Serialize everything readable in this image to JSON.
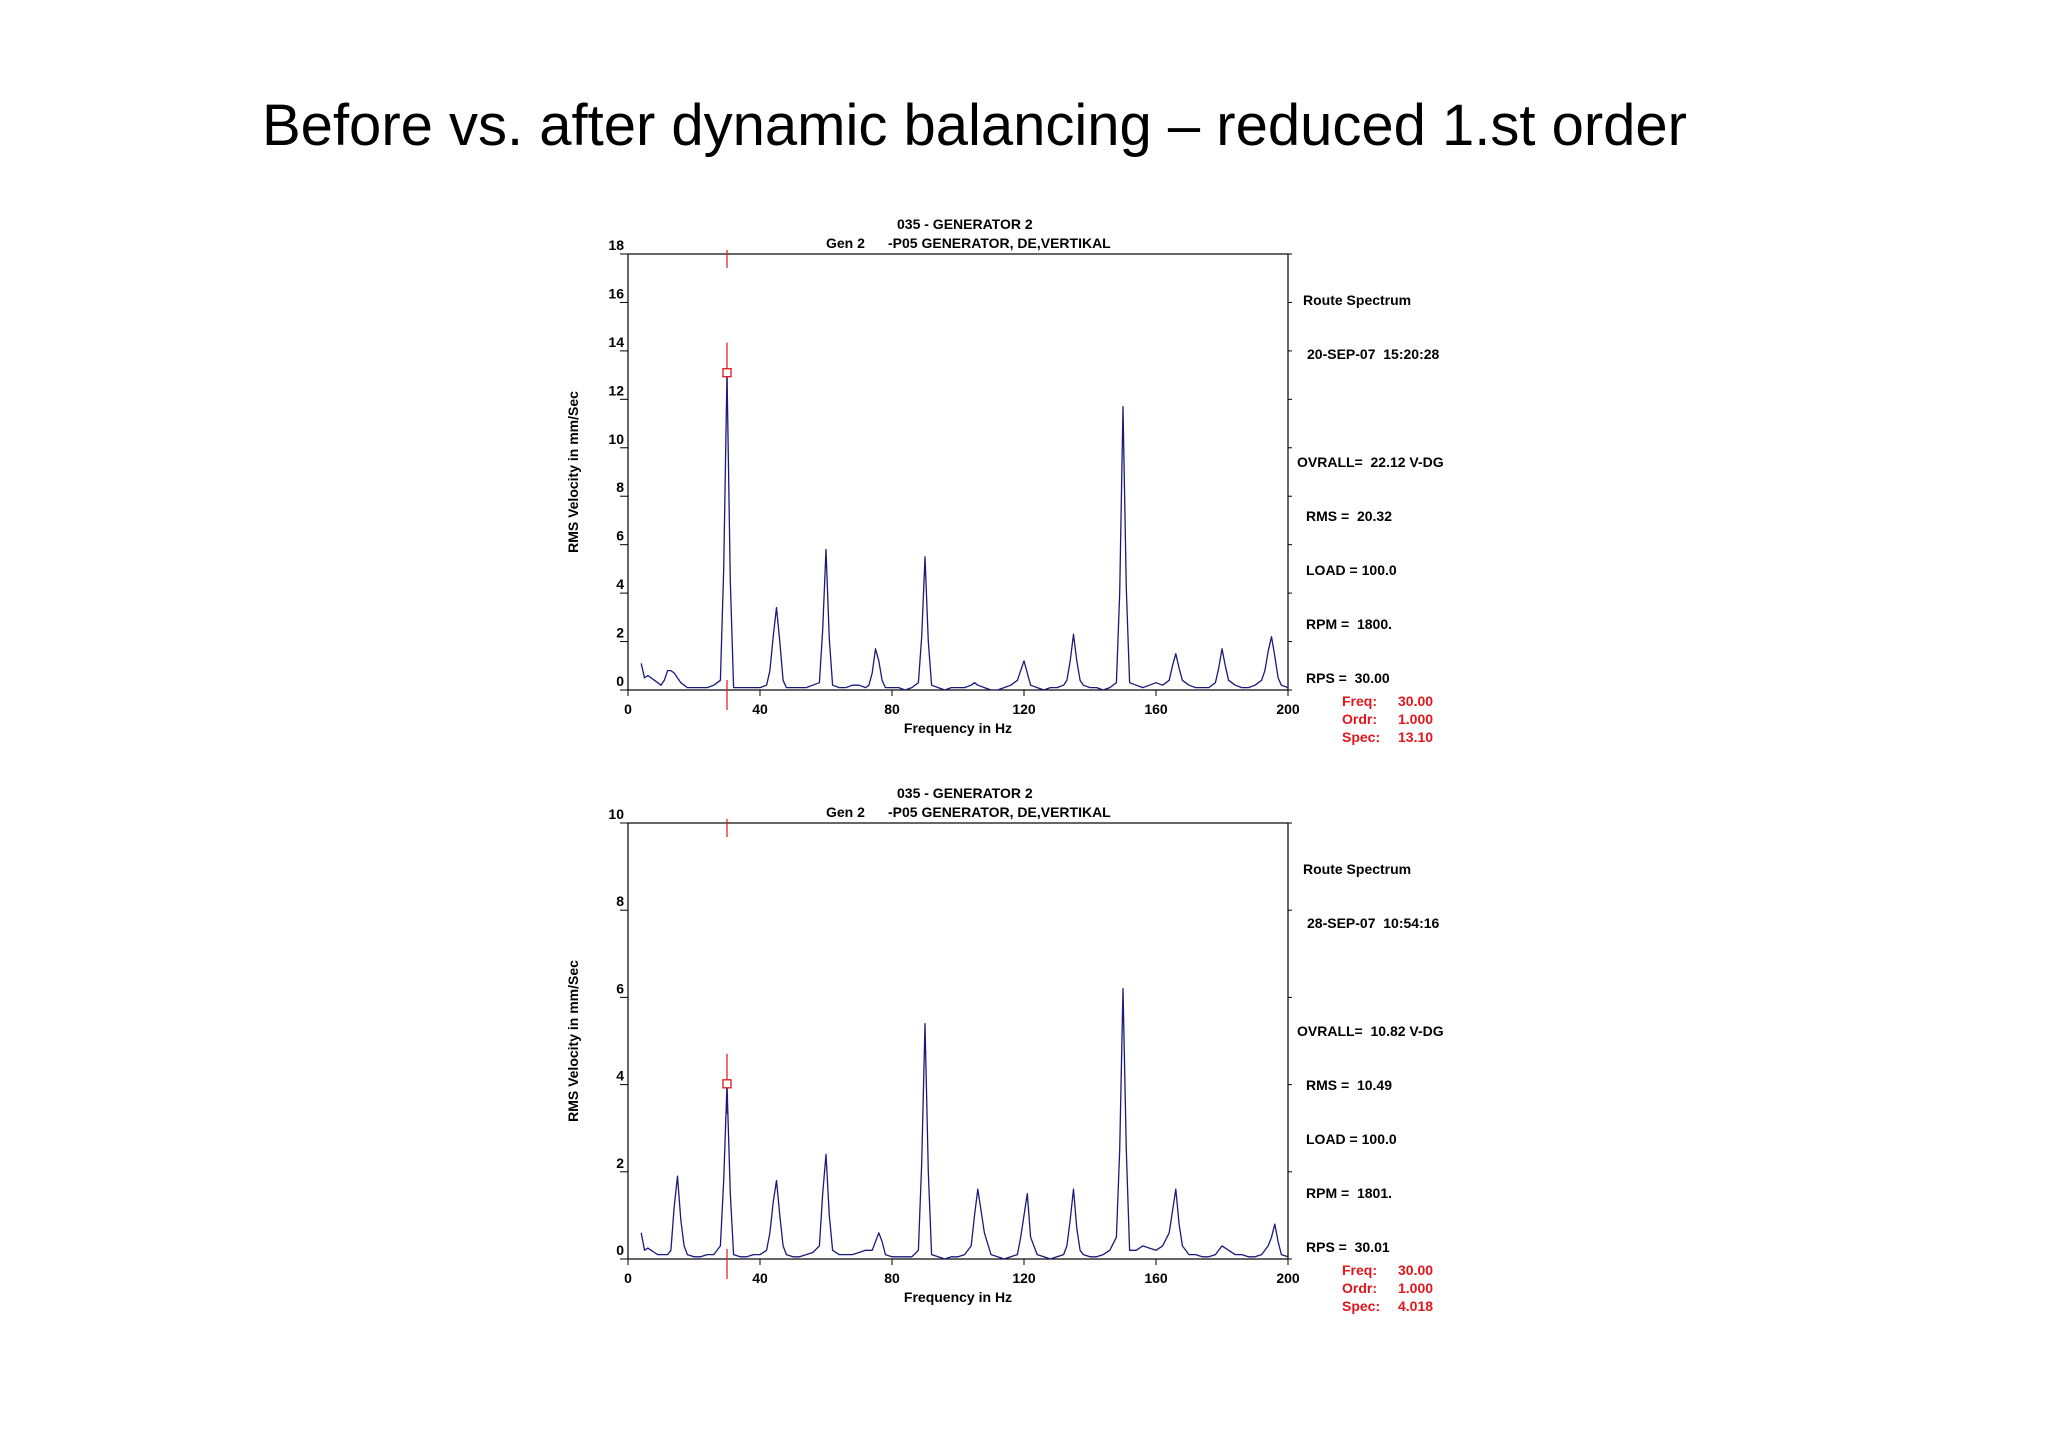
{
  "slide": {
    "title": "Before vs. after dynamic balancing – reduced 1.st order"
  },
  "colors": {
    "trace": "#1a1a7a",
    "cursor": "#e0161b",
    "axis": "#000000"
  },
  "chart_data": [
    {
      "type": "line",
      "header_line1": "035  - GENERATOR 2",
      "header_line2_left": "Gen 2",
      "header_line2_right": "-P05   GENERATOR, DE,VERTIKAL",
      "xlabel": "Frequency in Hz",
      "ylabel": "RMS Velocity in mm/Sec",
      "xlim": [
        0,
        200
      ],
      "ylim": [
        0,
        18
      ],
      "xticks": [
        "0",
        "40",
        "80",
        "120",
        "160",
        "200"
      ],
      "yticks": [
        "0",
        "2",
        "4",
        "6",
        "8",
        "10",
        "12",
        "14",
        "16",
        "18"
      ],
      "info": {
        "title": "Route Spectrum",
        "date": "20-SEP-07  15:20:28",
        "overall": "OVRALL=  22.12 V-DG",
        "rms": "RMS =  20.32",
        "load": "LOAD = 100.0",
        "rpm": "RPM =  1800.",
        "rps": "RPS =  30.00"
      },
      "cursor": {
        "freq_label": "Freq:",
        "freq": "30.00",
        "ordr_label": "Ordr:",
        "ordr": "1.000",
        "spec_label": "Spec:",
        "spec": "13.10",
        "x": 30,
        "y": 13.1
      },
      "series": [
        {
          "x": [
            4,
            5,
            6,
            7,
            8,
            9,
            10,
            11,
            12,
            13,
            14,
            15,
            16,
            17,
            18,
            20,
            22,
            24,
            26,
            28,
            29,
            30,
            31,
            32,
            34,
            36,
            38,
            40,
            42,
            43,
            44,
            45,
            46,
            47,
            48,
            50,
            52,
            54,
            56,
            58,
            59,
            60,
            61,
            62,
            64,
            66,
            68,
            70,
            72,
            73,
            74,
            75,
            76,
            77,
            78,
            80,
            82,
            84,
            86,
            88,
            89,
            90,
            91,
            92,
            94,
            96,
            98,
            100,
            102,
            104,
            105,
            106,
            108,
            110,
            112,
            114,
            116,
            118,
            119,
            120,
            121,
            122,
            124,
            126,
            128,
            130,
            132,
            133,
            134,
            135,
            136,
            137,
            138,
            140,
            142,
            144,
            146,
            148,
            149,
            150,
            151,
            152,
            154,
            156,
            158,
            160,
            162,
            164,
            165,
            166,
            167,
            168,
            170,
            172,
            174,
            176,
            178,
            179,
            180,
            181,
            182,
            184,
            186,
            188,
            190,
            192,
            193,
            194,
            195,
            196,
            197,
            198,
            200
          ],
          "values": [
            1.1,
            0.5,
            0.6,
            0.5,
            0.4,
            0.3,
            0.2,
            0.4,
            0.8,
            0.8,
            0.7,
            0.5,
            0.3,
            0.2,
            0.1,
            0.1,
            0.1,
            0.1,
            0.2,
            0.4,
            5.0,
            13.1,
            4.5,
            0.1,
            0.1,
            0.1,
            0.1,
            0.1,
            0.2,
            0.8,
            2.2,
            3.4,
            2.0,
            0.4,
            0.1,
            0.1,
            0.1,
            0.1,
            0.2,
            0.3,
            2.5,
            5.8,
            2.1,
            0.2,
            0.1,
            0.1,
            0.2,
            0.2,
            0.1,
            0.2,
            0.7,
            1.7,
            1.2,
            0.4,
            0.1,
            0.1,
            0.1,
            0.0,
            0.1,
            0.3,
            2.2,
            5.5,
            2.0,
            0.2,
            0.1,
            0.0,
            0.1,
            0.1,
            0.1,
            0.2,
            0.3,
            0.2,
            0.1,
            0.0,
            0.0,
            0.1,
            0.2,
            0.4,
            0.8,
            1.2,
            0.7,
            0.2,
            0.1,
            0.0,
            0.1,
            0.1,
            0.2,
            0.4,
            1.2,
            2.3,
            1.2,
            0.4,
            0.2,
            0.1,
            0.1,
            0.0,
            0.1,
            0.3,
            4.0,
            11.7,
            4.2,
            0.3,
            0.2,
            0.1,
            0.2,
            0.3,
            0.2,
            0.4,
            1.0,
            1.5,
            0.9,
            0.4,
            0.2,
            0.1,
            0.1,
            0.1,
            0.3,
            0.9,
            1.7,
            1.0,
            0.4,
            0.2,
            0.1,
            0.1,
            0.2,
            0.4,
            0.8,
            1.6,
            2.2,
            1.4,
            0.5,
            0.2,
            0.1
          ]
        }
      ]
    },
    {
      "type": "line",
      "header_line1": "035  - GENERATOR 2",
      "header_line2_left": "Gen 2",
      "header_line2_right": "-P05   GENERATOR, DE,VERTIKAL",
      "xlabel": "Frequency in Hz",
      "ylabel": "RMS Velocity in mm/Sec",
      "xlim": [
        0,
        200
      ],
      "ylim": [
        0,
        10
      ],
      "xticks": [
        "0",
        "40",
        "80",
        "120",
        "160",
        "200"
      ],
      "yticks": [
        "0",
        "2",
        "4",
        "6",
        "8",
        "10"
      ],
      "info": {
        "title": "Route Spectrum",
        "date": "28-SEP-07  10:54:16",
        "overall": "OVRALL=  10.82 V-DG",
        "rms": "RMS =  10.49",
        "load": "LOAD = 100.0",
        "rpm": "RPM =  1801.",
        "rps": "RPS =  30.01"
      },
      "cursor": {
        "freq_label": "Freq:",
        "freq": "30.00",
        "ordr_label": "Ordr:",
        "ordr": "1.000",
        "spec_label": "Spec:",
        "spec": "4.018",
        "x": 30,
        "y": 4.018
      },
      "series": [
        {
          "x": [
            4,
            5,
            6,
            7,
            8,
            9,
            10,
            12,
            13,
            14,
            15,
            16,
            17,
            18,
            20,
            22,
            24,
            26,
            28,
            29,
            30,
            31,
            32,
            34,
            36,
            38,
            40,
            42,
            43,
            44,
            45,
            46,
            47,
            48,
            50,
            52,
            54,
            56,
            58,
            59,
            60,
            61,
            62,
            64,
            66,
            68,
            70,
            72,
            74,
            75,
            76,
            77,
            78,
            80,
            82,
            84,
            86,
            88,
            89,
            90,
            91,
            92,
            94,
            96,
            98,
            100,
            102,
            104,
            105,
            106,
            108,
            110,
            112,
            114,
            116,
            118,
            119,
            120,
            121,
            122,
            124,
            126,
            128,
            130,
            132,
            133,
            134,
            135,
            136,
            137,
            138,
            140,
            142,
            144,
            146,
            148,
            149,
            150,
            151,
            152,
            154,
            156,
            158,
            160,
            162,
            164,
            165,
            166,
            167,
            168,
            170,
            172,
            174,
            176,
            178,
            180,
            182,
            184,
            186,
            188,
            190,
            192,
            194,
            195,
            196,
            197,
            198,
            200
          ],
          "values": [
            0.6,
            0.2,
            0.25,
            0.2,
            0.15,
            0.1,
            0.1,
            0.1,
            0.2,
            1.2,
            1.9,
            0.9,
            0.3,
            0.1,
            0.05,
            0.05,
            0.1,
            0.1,
            0.3,
            1.8,
            4.0,
            1.5,
            0.1,
            0.05,
            0.05,
            0.1,
            0.1,
            0.2,
            0.6,
            1.3,
            1.8,
            1.0,
            0.3,
            0.1,
            0.05,
            0.05,
            0.1,
            0.15,
            0.3,
            1.5,
            2.4,
            1.0,
            0.2,
            0.1,
            0.1,
            0.1,
            0.15,
            0.2,
            0.2,
            0.4,
            0.6,
            0.4,
            0.1,
            0.05,
            0.05,
            0.05,
            0.05,
            0.2,
            2.2,
            5.4,
            2.0,
            0.1,
            0.05,
            0.0,
            0.05,
            0.05,
            0.1,
            0.3,
            1.0,
            1.6,
            0.6,
            0.1,
            0.05,
            0.0,
            0.05,
            0.1,
            0.5,
            1.0,
            1.5,
            0.5,
            0.1,
            0.05,
            0.0,
            0.05,
            0.1,
            0.3,
            0.9,
            1.6,
            0.7,
            0.2,
            0.1,
            0.05,
            0.05,
            0.1,
            0.2,
            0.5,
            2.5,
            6.2,
            2.5,
            0.2,
            0.2,
            0.3,
            0.25,
            0.2,
            0.3,
            0.6,
            1.1,
            1.6,
            0.8,
            0.3,
            0.1,
            0.1,
            0.05,
            0.05,
            0.1,
            0.3,
            0.2,
            0.1,
            0.1,
            0.05,
            0.05,
            0.1,
            0.3,
            0.5,
            0.8,
            0.4,
            0.1,
            0.05
          ]
        }
      ]
    }
  ]
}
